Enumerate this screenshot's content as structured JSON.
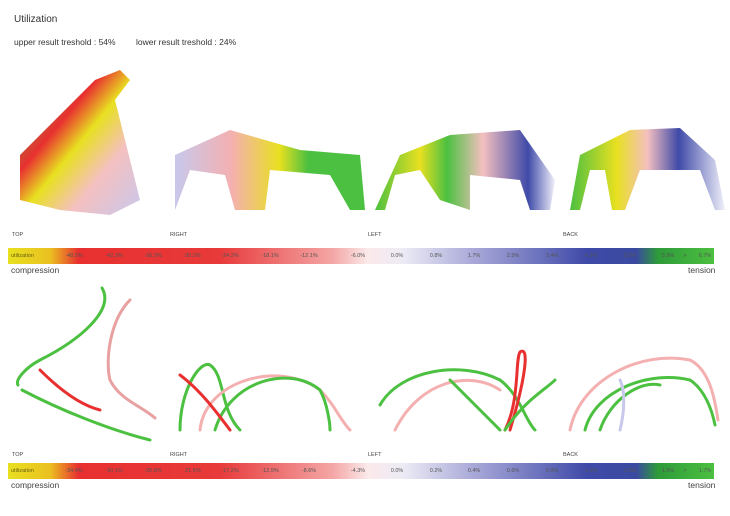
{
  "header": {
    "title": "Utilization",
    "upper_threshold": "upper result treshold : 54%",
    "lower_threshold": "lower result treshold : 24%"
  },
  "views": [
    "TOP",
    "RIGHT",
    "LEFT",
    "BACK"
  ],
  "legend_top": {
    "lead": "utilization",
    "ticks": [
      "-48.5%",
      "-42.3%",
      "-36.3%",
      "-30.2%",
      "-24.2%",
      "-18.1%",
      "-12.1%",
      "-6.0%",
      "0.0%",
      "0.8%",
      "1.7%",
      "2.5%",
      "3.4%",
      "4.2%",
      "5.0%",
      "5.9%",
      ">",
      "6.7%"
    ],
    "left_caption": "compression",
    "right_caption": "tension"
  },
  "legend_bottom": {
    "lead": "utilization",
    "ticks": [
      "-34.4%",
      "-30.1%",
      "-25.8%",
      "-21.5%",
      "-17.2%",
      "-12.9%",
      "-8.6%",
      "-4.3%",
      "0.0%",
      "0.2%",
      "0.4%",
      "0.6%",
      "0.9%",
      "1.1%",
      "1.3%",
      "1.5%",
      ">",
      "1.7%"
    ],
    "left_caption": "compression",
    "right_caption": "tension"
  },
  "colors": {
    "compression": "#e83030",
    "tension": "#3f4aa8",
    "max": "#4cc040",
    "min": "#e8e020"
  }
}
